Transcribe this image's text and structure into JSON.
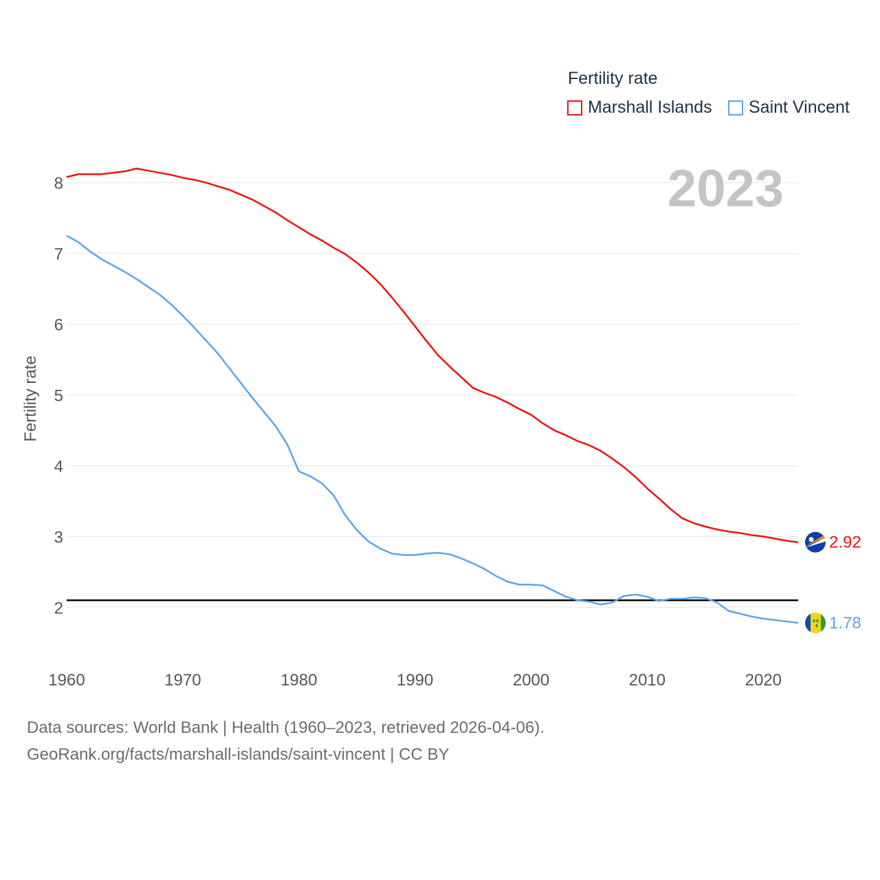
{
  "legend": {
    "title": "Fertility rate",
    "items": [
      {
        "label": "Marshall Islands",
        "color": "#ee1111"
      },
      {
        "label": "Saint Vincent",
        "color": "#5aa5e8"
      }
    ]
  },
  "year_label": "2023",
  "source": {
    "line1": "Data sources: World Bank | Health (1960–2023, retrieved 2026-04-06).",
    "line2": "GeoRank.org/facts/marshall-islands/saint-vincent | CC BY"
  },
  "chart_data": {
    "type": "line",
    "title": "Fertility rate",
    "xlabel": "",
    "ylabel": "Fertility rate",
    "xlim": [
      1960,
      2023
    ],
    "ylim": [
      1.45,
      8.25
    ],
    "x_ticks": [
      "1960",
      "1970",
      "1980",
      "1990",
      "2000",
      "2010",
      "2020"
    ],
    "y_ticks": [
      "2",
      "3",
      "4",
      "5",
      "6",
      "7",
      "8"
    ],
    "grid": true,
    "reference_line": {
      "value": 2.1,
      "color": "#000000"
    },
    "x": [
      1960,
      1961,
      1962,
      1963,
      1964,
      1965,
      1966,
      1967,
      1968,
      1969,
      1970,
      1971,
      1972,
      1973,
      1974,
      1975,
      1976,
      1977,
      1978,
      1979,
      1980,
      1981,
      1982,
      1983,
      1984,
      1985,
      1986,
      1987,
      1988,
      1989,
      1990,
      1991,
      1992,
      1993,
      1994,
      1995,
      1996,
      1997,
      1998,
      1999,
      2000,
      2001,
      2002,
      2003,
      2004,
      2005,
      2006,
      2007,
      2008,
      2009,
      2010,
      2011,
      2012,
      2013,
      2014,
      2015,
      2016,
      2017,
      2018,
      2019,
      2020,
      2021,
      2022,
      2023
    ],
    "series": [
      {
        "name": "Marshall Islands",
        "color": "#ee1111",
        "end_label": "2.92",
        "flag": "marshall-islands-flag-icon",
        "values": [
          8.08,
          8.12,
          8.12,
          8.12,
          8.14,
          8.16,
          8.2,
          8.17,
          8.14,
          8.11,
          8.07,
          8.04,
          8.0,
          7.95,
          7.9,
          7.83,
          7.76,
          7.67,
          7.58,
          7.47,
          7.37,
          7.27,
          7.18,
          7.08,
          6.99,
          6.87,
          6.73,
          6.57,
          6.38,
          6.18,
          5.97,
          5.76,
          5.56,
          5.4,
          5.25,
          5.1,
          5.03,
          4.97,
          4.89,
          4.8,
          4.72,
          4.6,
          4.5,
          4.43,
          4.35,
          4.29,
          4.21,
          4.1,
          3.98,
          3.84,
          3.68,
          3.54,
          3.39,
          3.26,
          3.19,
          3.14,
          3.1,
          3.07,
          3.05,
          3.02,
          3.0,
          2.97,
          2.94,
          2.92
        ]
      },
      {
        "name": "Saint Vincent",
        "color": "#5aa5e8",
        "end_label": "1.78",
        "flag": "saint-vincent-flag-icon",
        "values": [
          7.25,
          7.16,
          7.03,
          6.92,
          6.83,
          6.74,
          6.64,
          6.53,
          6.42,
          6.28,
          6.12,
          5.95,
          5.77,
          5.59,
          5.38,
          5.17,
          4.96,
          4.76,
          4.56,
          4.3,
          3.92,
          3.85,
          3.75,
          3.58,
          3.3,
          3.09,
          2.93,
          2.83,
          2.76,
          2.74,
          2.74,
          2.76,
          2.77,
          2.75,
          2.69,
          2.62,
          2.54,
          2.44,
          2.36,
          2.32,
          2.32,
          2.31,
          2.23,
          2.15,
          2.1,
          2.08,
          2.04,
          2.07,
          2.16,
          2.18,
          2.15,
          2.09,
          2.12,
          2.12,
          2.14,
          2.13,
          2.07,
          1.95,
          1.91,
          1.87,
          1.84,
          1.82,
          1.8,
          1.78
        ]
      }
    ]
  }
}
